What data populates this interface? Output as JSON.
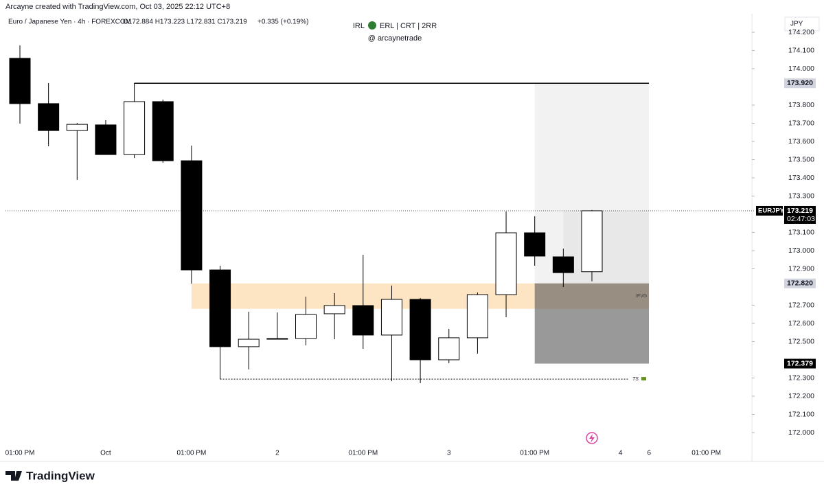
{
  "header": {
    "credit": "Arcayne created with TradingView.com, Oct 03, 2025 22:12 UTC+8",
    "symbol": "Euro / Japanese Yen · 4h · FOREXCOM",
    "ohlc": "O172.884 H173.223 L172.831 C173.219",
    "change": "+0.335 (+0.19%)",
    "title_left": "IRL",
    "title_right": "ERL | CRT | 2RR",
    "subtitle": "@ arcaynetrade",
    "currency": "JPY",
    "brand": "TradingView"
  },
  "chart_data": {
    "type": "candlestick",
    "categories": [
      "01:00 PM",
      null,
      null,
      "Oct",
      null,
      null,
      "01:00 PM",
      null,
      null,
      "2",
      null,
      null,
      "01:00 PM",
      null,
      null,
      "3",
      null,
      null,
      "01:00 PM",
      null,
      null,
      "4",
      "6",
      null,
      "01:00 PM"
    ],
    "open": [
      174.057,
      173.808,
      173.66,
      173.691,
      173.528,
      173.819,
      173.494,
      172.894,
      172.472,
      172.513,
      172.517,
      172.653,
      172.698,
      172.536,
      172.732,
      172.4,
      172.521,
      172.758,
      173.098,
      172.966,
      172.884,
      null,
      null,
      null,
      null
    ],
    "high": [
      174.128,
      173.921,
      173.702,
      173.717,
      173.921,
      173.83,
      173.577,
      172.917,
      172.664,
      172.66,
      172.747,
      172.766,
      172.977,
      172.808,
      172.74,
      172.57,
      172.77,
      173.215,
      173.189,
      173.011,
      173.223,
      null,
      null,
      null,
      null
    ],
    "low": [
      173.698,
      173.574,
      173.389,
      173.528,
      173.509,
      173.483,
      172.819,
      172.294,
      172.347,
      172.513,
      172.479,
      172.513,
      172.46,
      172.283,
      172.272,
      172.381,
      172.434,
      172.634,
      172.917,
      172.8,
      172.831,
      null,
      null,
      null,
      null
    ],
    "close": [
      173.808,
      173.66,
      173.694,
      173.528,
      173.819,
      173.494,
      172.894,
      172.472,
      172.513,
      172.517,
      172.649,
      172.698,
      172.536,
      172.732,
      172.4,
      172.521,
      172.758,
      173.098,
      172.97,
      172.879,
      173.219,
      null,
      null,
      null,
      null
    ],
    "up_color": "#ffffff",
    "down_color": "#000000",
    "wick_color": "#000000",
    "ylim": [
      171.932,
      174.302
    ],
    "yticks": [
      {
        "value": 172.0,
        "label": "172.000"
      },
      {
        "value": 172.1,
        "label": "172.100"
      },
      {
        "value": 172.2,
        "label": "172.200"
      },
      {
        "value": 172.3,
        "label": "172.300"
      },
      {
        "value": 172.5,
        "label": "172.500"
      },
      {
        "value": 172.6,
        "label": "172.600"
      },
      {
        "value": 172.7,
        "label": "172.700"
      },
      {
        "value": 172.9,
        "label": "172.900"
      },
      {
        "value": 173.0,
        "label": "173.000"
      },
      {
        "value": 173.1,
        "label": "173.100"
      },
      {
        "value": 173.3,
        "label": "173.300"
      },
      {
        "value": 173.4,
        "label": "173.400"
      },
      {
        "value": 173.5,
        "label": "173.500"
      },
      {
        "value": 173.6,
        "label": "173.600"
      },
      {
        "value": 173.7,
        "label": "173.700"
      },
      {
        "value": 173.8,
        "label": "173.800"
      },
      {
        "value": 174.0,
        "label": "174.000"
      },
      {
        "value": 174.1,
        "label": "174.100"
      },
      {
        "value": 174.2,
        "label": "174.200"
      }
    ],
    "grid": false,
    "high_line": {
      "value": 173.92,
      "label": "173.920"
    },
    "fvg_zone": {
      "low": 172.68,
      "high": 172.82,
      "label": "IFVG",
      "color": "#fde4c3"
    },
    "target_box": {
      "top": 173.92,
      "mid": 172.82,
      "bottom": 172.379,
      "mid_label": "172.820",
      "bottom_label": "172.379"
    },
    "sweep_line": {
      "value": 172.294,
      "label": "TS"
    },
    "last_price": {
      "value": 173.219,
      "symbol": "EURJPY",
      "label": "173.219",
      "countdown": "02:47:03"
    }
  }
}
